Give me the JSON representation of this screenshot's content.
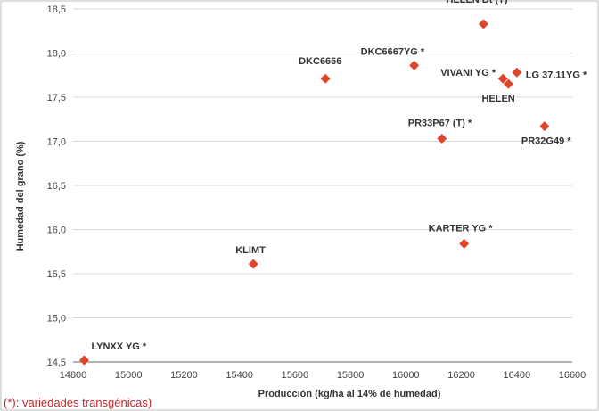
{
  "chart_data": {
    "type": "scatter",
    "title": "",
    "xlabel": "Producción (kg/ha al 14% de humedad)",
    "ylabel": "Humedad del grano (%)",
    "xlim": [
      14800,
      16600
    ],
    "ylim": [
      14.5,
      18.5
    ],
    "x_ticks": [
      "14800",
      "15000",
      "15200",
      "15400",
      "15600",
      "15800",
      "16000",
      "16200",
      "16400",
      "16600"
    ],
    "y_ticks": [
      "14,5",
      "15,0",
      "15,5",
      "16,0",
      "16,5",
      "17,0",
      "17,5",
      "18,0",
      "18,5"
    ],
    "grid": "horizontal",
    "marker_color": "#e0442a",
    "points": [
      {
        "label": "HELEN Bt (T) *",
        "x": 16280,
        "y": 18.33
      },
      {
        "label": "DKC6666",
        "x": 15710,
        "y": 17.71
      },
      {
        "label": "DKC6667YG *",
        "x": 16030,
        "y": 17.86
      },
      {
        "label": "VIVANI YG *",
        "x": 16350,
        "y": 17.71
      },
      {
        "label": "LG 37.11YG *",
        "x": 16400,
        "y": 17.78
      },
      {
        "label": "HELEN",
        "x": 16370,
        "y": 17.65
      },
      {
        "label": "PR33P67 (T) *",
        "x": 16130,
        "y": 17.03
      },
      {
        "label": "PR32G49 *",
        "x": 16500,
        "y": 17.17
      },
      {
        "label": "KARTER YG *",
        "x": 16210,
        "y": 15.84
      },
      {
        "label": "KLIMT",
        "x": 15450,
        "y": 15.61
      },
      {
        "label": "LYNXX YG *",
        "x": 14840,
        "y": 14.52
      }
    ]
  },
  "footnote": "(*): variedades transgénicas)"
}
